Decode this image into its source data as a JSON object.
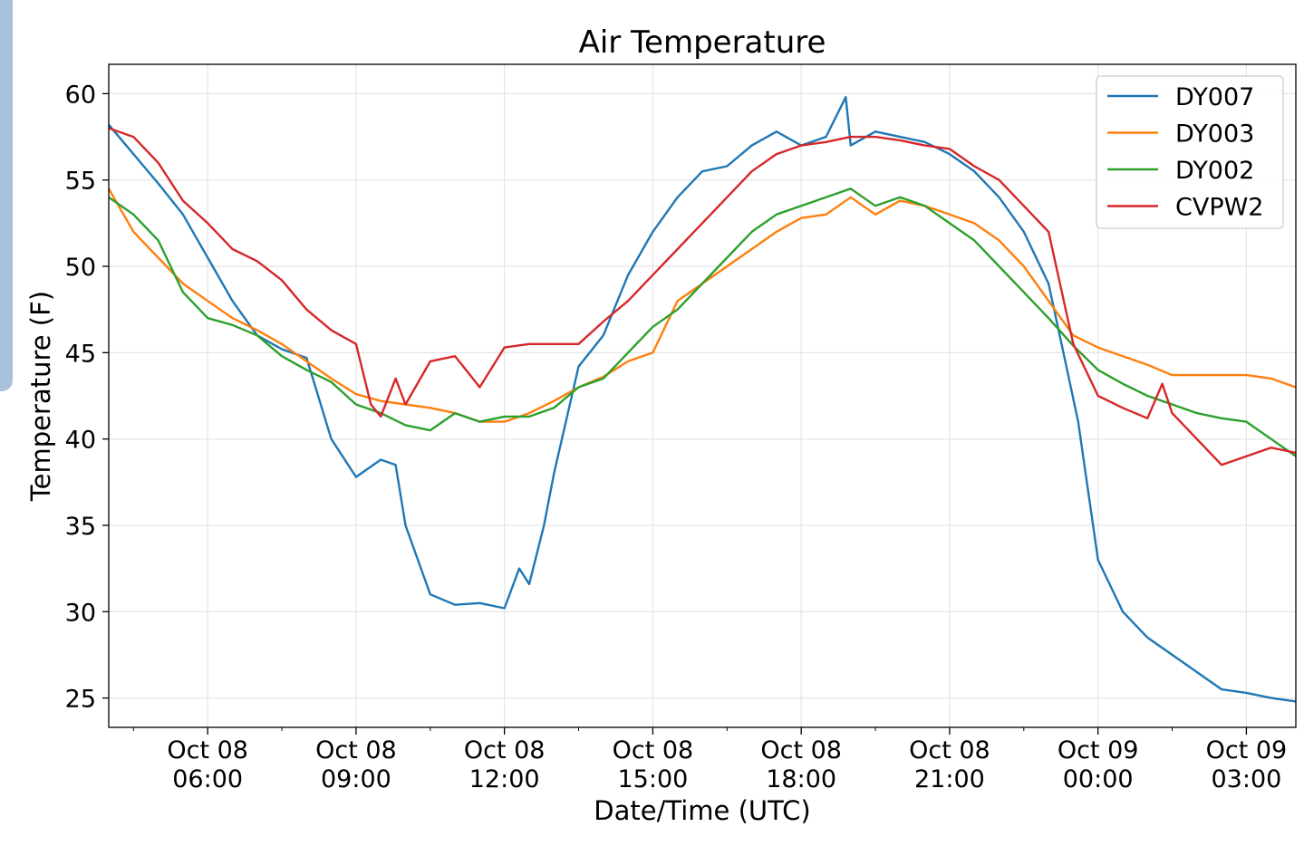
{
  "chart_data": {
    "type": "line",
    "title": "Air Temperature",
    "xlabel": "Date/Time (UTC)",
    "ylabel": "Temperature (F)",
    "xlim": [
      4.0,
      28.0
    ],
    "ylim": [
      23.3,
      61.7
    ],
    "yticks": [
      25,
      30,
      35,
      40,
      45,
      50,
      55,
      60
    ],
    "xticks": [
      {
        "x": 6,
        "line1": "Oct 08",
        "line2": "06:00"
      },
      {
        "x": 9,
        "line1": "Oct 08",
        "line2": "09:00"
      },
      {
        "x": 12,
        "line1": "Oct 08",
        "line2": "12:00"
      },
      {
        "x": 15,
        "line1": "Oct 08",
        "line2": "15:00"
      },
      {
        "x": 18,
        "line1": "Oct 08",
        "line2": "18:00"
      },
      {
        "x": 21,
        "line1": "Oct 08",
        "line2": "21:00"
      },
      {
        "x": 24,
        "line1": "Oct 09",
        "line2": "00:00"
      },
      {
        "x": 27,
        "line1": "Oct 09",
        "line2": "03:00"
      }
    ],
    "grid": true,
    "legend_position": "top-right",
    "series": [
      {
        "name": "DY007",
        "color": "#1f77b4",
        "x": [
          4.0,
          4.5,
          5.0,
          5.5,
          6.0,
          6.5,
          7.0,
          7.5,
          8.0,
          8.5,
          9.0,
          9.5,
          9.8,
          10.0,
          10.5,
          11.0,
          11.5,
          12.0,
          12.3,
          12.5,
          12.8,
          13.0,
          13.5,
          14.0,
          14.5,
          15.0,
          15.5,
          16.0,
          16.5,
          17.0,
          17.5,
          18.0,
          18.5,
          18.9,
          19.0,
          19.5,
          20.0,
          20.5,
          21.0,
          21.5,
          22.0,
          22.5,
          23.0,
          23.3,
          23.6,
          24.0,
          24.5,
          25.0,
          25.5,
          26.0,
          26.5,
          27.0,
          27.5,
          28.0
        ],
        "y": [
          58.2,
          56.5,
          54.8,
          53.0,
          50.5,
          48.0,
          46.0,
          45.2,
          44.7,
          40.0,
          37.8,
          38.8,
          38.5,
          35.0,
          31.0,
          30.4,
          30.5,
          30.2,
          32.5,
          31.6,
          35.0,
          38.0,
          44.2,
          46.0,
          49.5,
          52.0,
          54.0,
          55.5,
          55.8,
          57.0,
          57.8,
          57.0,
          57.5,
          59.8,
          57.0,
          57.8,
          57.5,
          57.2,
          56.5,
          55.5,
          54.0,
          52.0,
          49.0,
          45.0,
          41.0,
          33.0,
          30.0,
          28.5,
          27.5,
          26.5,
          25.5,
          25.3,
          25.0,
          24.8
        ]
      },
      {
        "name": "DY003",
        "color": "#ff7f0e",
        "x": [
          4.0,
          4.5,
          5.0,
          5.5,
          6.0,
          6.5,
          7.0,
          7.5,
          8.0,
          8.5,
          9.0,
          9.5,
          10.0,
          10.5,
          11.0,
          11.5,
          12.0,
          12.5,
          13.0,
          13.5,
          14.0,
          14.5,
          15.0,
          15.5,
          16.0,
          16.5,
          17.0,
          17.5,
          18.0,
          18.5,
          19.0,
          19.5,
          20.0,
          20.5,
          21.0,
          21.5,
          22.0,
          22.5,
          23.0,
          23.5,
          24.0,
          24.5,
          25.0,
          25.5,
          26.0,
          26.5,
          27.0,
          27.5,
          28.0
        ],
        "y": [
          54.5,
          52.0,
          50.5,
          49.0,
          48.0,
          47.0,
          46.3,
          45.5,
          44.5,
          43.5,
          42.6,
          42.2,
          42.0,
          41.8,
          41.5,
          41.0,
          41.0,
          41.5,
          42.2,
          43.0,
          43.6,
          44.5,
          45.0,
          48.0,
          49.0,
          50.0,
          51.0,
          52.0,
          52.8,
          53.0,
          54.0,
          53.0,
          53.8,
          53.5,
          53.0,
          52.5,
          51.5,
          50.0,
          48.0,
          46.0,
          45.3,
          44.8,
          44.3,
          43.7,
          43.7,
          43.7,
          43.7,
          43.5,
          43.0
        ]
      },
      {
        "name": "DY002",
        "color": "#2ca02c",
        "x": [
          4.0,
          4.5,
          5.0,
          5.5,
          6.0,
          6.5,
          7.0,
          7.5,
          8.0,
          8.5,
          9.0,
          9.5,
          10.0,
          10.5,
          11.0,
          11.5,
          12.0,
          12.5,
          13.0,
          13.5,
          14.0,
          14.5,
          15.0,
          15.5,
          16.0,
          16.5,
          17.0,
          17.5,
          18.0,
          18.5,
          19.0,
          19.5,
          20.0,
          20.5,
          21.0,
          21.5,
          22.0,
          22.5,
          23.0,
          23.5,
          24.0,
          24.5,
          25.0,
          25.5,
          26.0,
          26.5,
          27.0,
          27.5,
          28.0
        ],
        "y": [
          54.0,
          53.0,
          51.5,
          48.5,
          47.0,
          46.6,
          46.0,
          44.8,
          44.0,
          43.3,
          42.0,
          41.5,
          40.8,
          40.5,
          41.5,
          41.0,
          41.3,
          41.3,
          41.8,
          43.0,
          43.5,
          45.0,
          46.5,
          47.5,
          49.0,
          50.5,
          52.0,
          53.0,
          53.5,
          54.0,
          54.5,
          53.5,
          54.0,
          53.5,
          52.5,
          51.5,
          50.0,
          48.5,
          47.0,
          45.4,
          44.0,
          43.2,
          42.5,
          42.0,
          41.5,
          41.2,
          41.0,
          40.0,
          39.0
        ]
      },
      {
        "name": "CVPW2",
        "color": "#d62728",
        "x": [
          4.0,
          4.5,
          5.0,
          5.5,
          6.0,
          6.5,
          7.0,
          7.5,
          8.0,
          8.5,
          9.0,
          9.3,
          9.5,
          9.8,
          10.0,
          10.5,
          11.0,
          11.5,
          12.0,
          12.5,
          13.0,
          13.5,
          14.0,
          14.5,
          15.0,
          15.5,
          16.0,
          16.5,
          17.0,
          17.5,
          18.0,
          18.5,
          19.0,
          19.5,
          20.0,
          20.5,
          21.0,
          21.5,
          22.0,
          22.5,
          23.0,
          23.5,
          24.0,
          24.5,
          25.0,
          25.3,
          25.5,
          26.0,
          26.5,
          27.0,
          27.5,
          28.0
        ],
        "y": [
          58.0,
          57.5,
          56.0,
          53.8,
          52.5,
          51.0,
          50.3,
          49.2,
          47.5,
          46.3,
          45.5,
          42.0,
          41.3,
          43.5,
          42.0,
          44.5,
          44.8,
          43.0,
          45.3,
          45.5,
          45.5,
          45.5,
          46.8,
          48.0,
          49.5,
          51.0,
          52.5,
          54.0,
          55.5,
          56.5,
          57.0,
          57.2,
          57.5,
          57.5,
          57.3,
          57.0,
          56.8,
          55.8,
          55.0,
          53.5,
          52.0,
          45.5,
          42.5,
          41.8,
          41.2,
          43.2,
          41.5,
          40.0,
          38.5,
          39.0,
          39.5,
          39.2
        ]
      }
    ]
  }
}
